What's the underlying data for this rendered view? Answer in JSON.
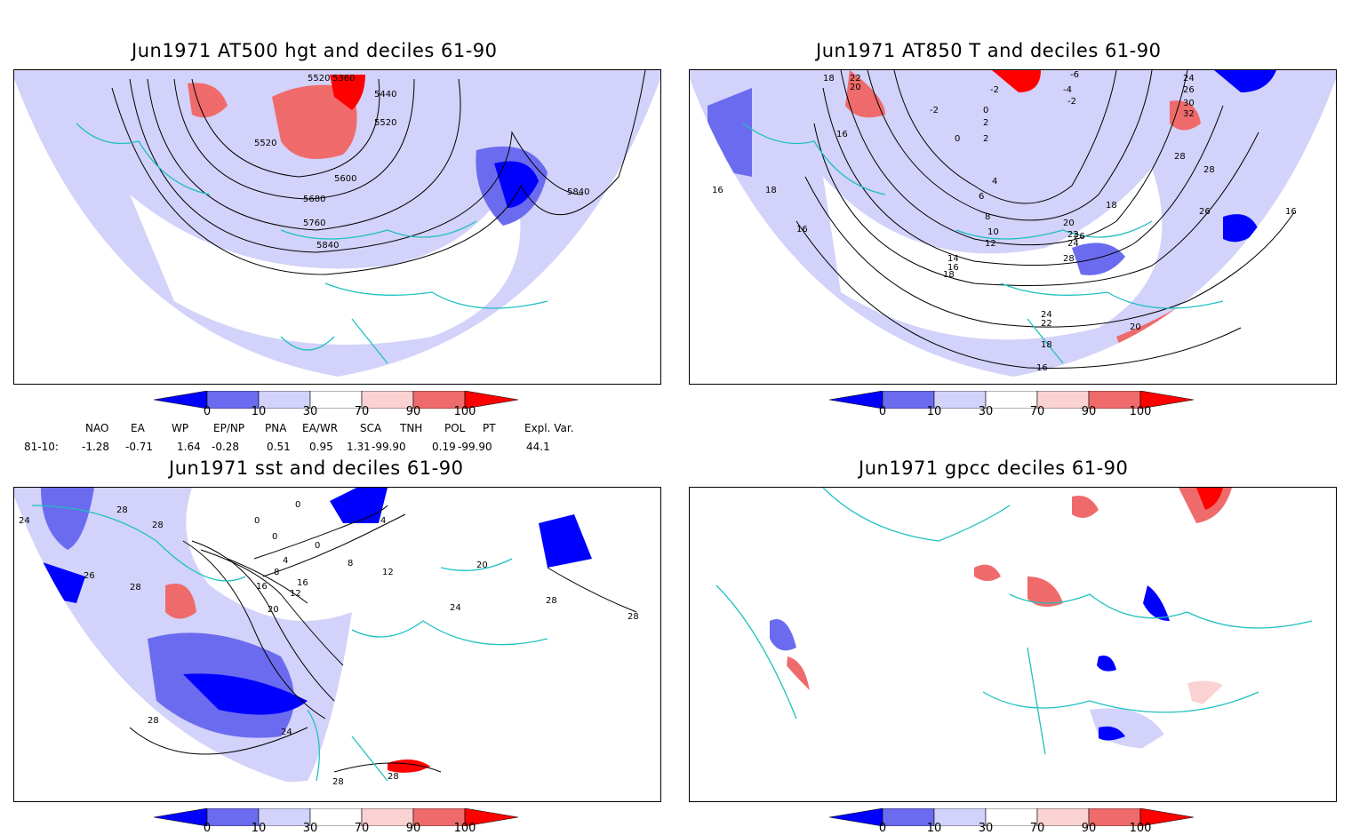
{
  "panels": [
    {
      "title": "Jun1971 AT500 hgt and deciles 61-90",
      "contour_labels": [
        "5360",
        "5520",
        "5440",
        "5520",
        "5520",
        "5600",
        "5680",
        "5760",
        "5840",
        "5840"
      ]
    },
    {
      "title": "Jun1971 AT850 T and deciles 61-90",
      "contour_labels": [
        "18",
        "22",
        "20",
        "-2",
        "0",
        "2",
        "-4",
        "-6",
        "-2",
        "24",
        "26",
        "30",
        "32",
        "28",
        "28",
        "16",
        "18",
        "16",
        "16",
        "4",
        "6",
        "8",
        "10",
        "12",
        "14",
        "16",
        "18",
        "20",
        "22",
        "24",
        "26",
        "28",
        "18",
        "16",
        "24",
        "22",
        "20",
        "18",
        "16",
        "26",
        "-2",
        "2",
        "0"
      ]
    },
    {
      "title": "Jun1971 sst and deciles 61-90",
      "contour_labels": [
        "24",
        "28",
        "28",
        "28",
        "26",
        "0",
        "0",
        "4",
        "0",
        "0",
        "4",
        "8",
        "12",
        "16",
        "16",
        "12",
        "8",
        "20",
        "20",
        "24",
        "28",
        "24",
        "28",
        "28",
        "28",
        "28"
      ]
    },
    {
      "title": "Jun1971 gpcc deciles 61-90",
      "contour_labels": []
    }
  ],
  "colorbar": {
    "ticks": [
      "0",
      "10",
      "30",
      "70",
      "90",
      "100"
    ],
    "colors": [
      "#0000ff",
      "#6b6bef",
      "#d2d2fa",
      "#ffffff",
      "#fad2d2",
      "#ef6b6b",
      "#ff0000"
    ]
  },
  "indices": {
    "headers": [
      "NAO",
      "EA",
      "WP",
      "EP/NP",
      "PNA",
      "EA/WR",
      "SCA",
      "TNH",
      "POL",
      "PT",
      "Expl. Var."
    ],
    "row_label": "81-10:",
    "values": [
      "-1.28",
      "-0.71",
      "1.64",
      "-0.28",
      "0.51",
      "0.95",
      "1.31",
      "-99.90",
      "0.19",
      "-99.90",
      "44.1"
    ]
  }
}
